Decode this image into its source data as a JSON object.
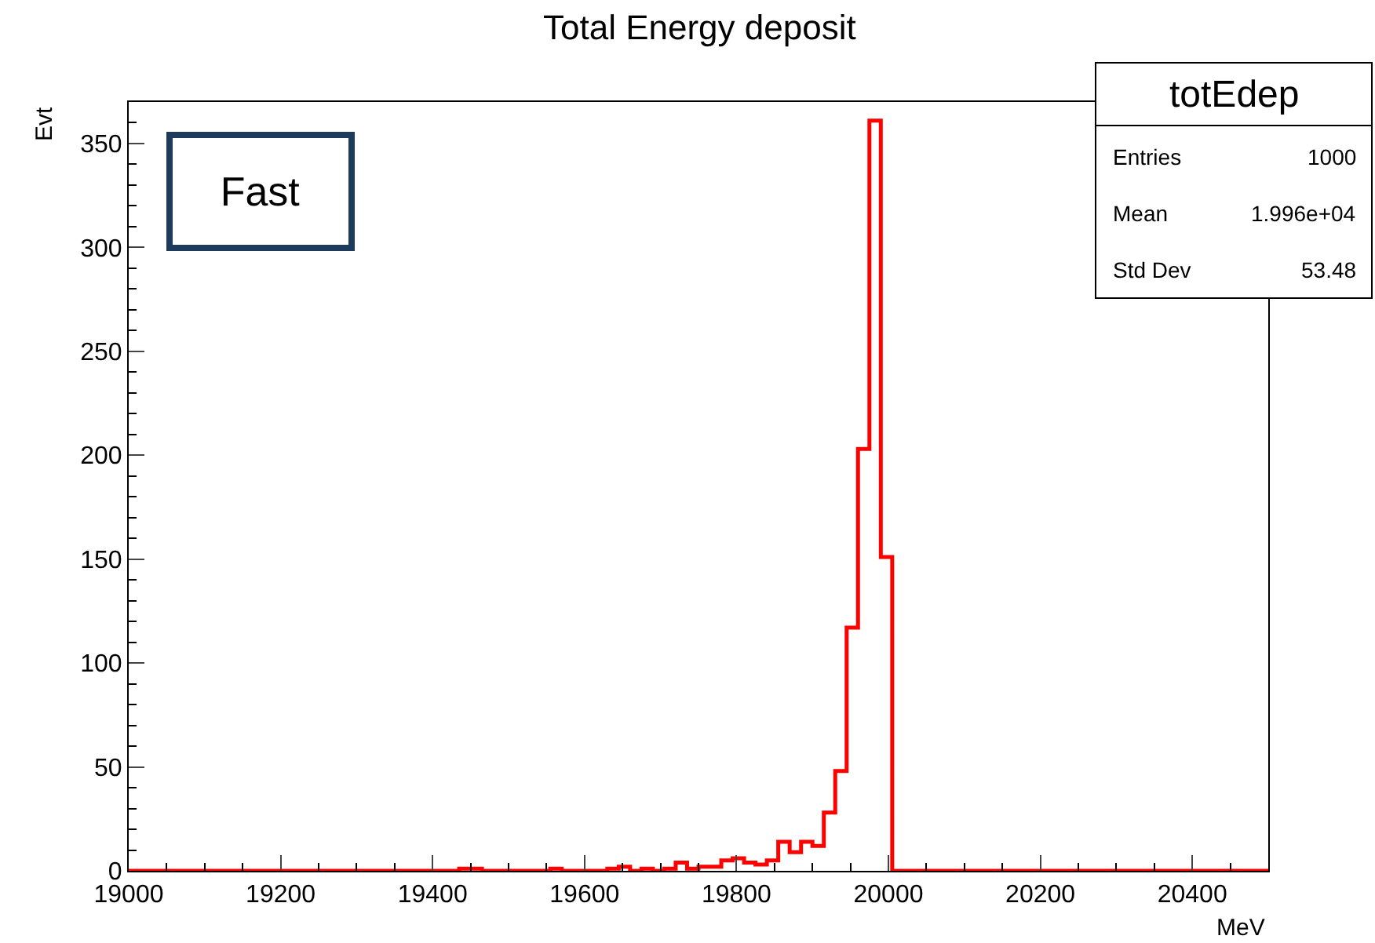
{
  "chart_data": {
    "type": "histogram",
    "title": "Total Energy deposit",
    "xlabel": "MeV",
    "ylabel": "Evt",
    "bins": [
      19000,
      19015,
      19030,
      19045,
      19060,
      19075,
      19090,
      19105,
      19120,
      19135,
      19150,
      19165,
      19180,
      19195,
      19210,
      19225,
      19240,
      19255,
      19270,
      19285,
      19300,
      19315,
      19330,
      19345,
      19360,
      19375,
      19390,
      19405,
      19420,
      19435,
      19450,
      19465,
      19480,
      19495,
      19510,
      19525,
      19540,
      19555,
      19570,
      19585,
      19600,
      19615,
      19630,
      19645,
      19660,
      19675,
      19690,
      19705,
      19720,
      19735,
      19750,
      19765,
      19780,
      19795,
      19810,
      19825,
      19840,
      19855,
      19870,
      19885,
      19900,
      19915,
      19930,
      19945,
      19960,
      19975,
      19990,
      20005,
      20020,
      20035,
      20050,
      20065,
      20080,
      20095,
      20110,
      20125,
      20140,
      20155,
      20170,
      20185,
      20200,
      20215,
      20230,
      20245,
      20260,
      20275,
      20290,
      20305,
      20320,
      20335,
      20350,
      20365,
      20380,
      20395,
      20410,
      20425,
      20440,
      20455,
      20470,
      20485,
      20500
    ],
    "values": [
      0,
      0,
      0,
      0,
      0,
      0,
      0,
      0,
      0,
      0,
      0,
      0,
      0,
      0,
      0,
      0,
      0,
      0,
      0,
      0,
      0,
      0,
      0,
      0,
      0,
      0,
      0,
      0,
      0,
      1,
      1,
      0,
      0,
      0,
      0,
      0,
      0,
      1,
      0,
      0,
      0,
      0,
      1,
      2,
      0,
      1,
      0,
      1,
      4,
      1,
      2,
      2,
      5,
      6,
      4,
      3,
      5,
      14,
      9,
      14,
      12,
      28,
      48,
      117,
      203,
      361,
      151,
      0,
      0,
      0,
      0,
      0,
      0,
      0,
      0,
      0,
      0,
      0,
      0,
      0,
      0,
      0,
      0,
      0,
      0,
      0,
      0,
      0,
      0,
      0,
      0,
      0,
      0,
      0,
      0,
      0,
      0,
      0,
      0,
      0
    ],
    "color": "#ff0000",
    "xlim": [
      19000,
      20500
    ],
    "xticks": [
      19000,
      19200,
      19400,
      19600,
      19800,
      20000,
      20200,
      20400
    ],
    "ylim": [
      0,
      370
    ],
    "yticks": [
      0,
      50,
      100,
      150,
      200,
      250,
      300,
      350
    ],
    "legend": false,
    "annotations": [
      "Fast",
      "totEdep",
      "Entries",
      "1000",
      "Mean",
      "1.996e+04",
      "Std Dev",
      "53.48"
    ]
  }
}
